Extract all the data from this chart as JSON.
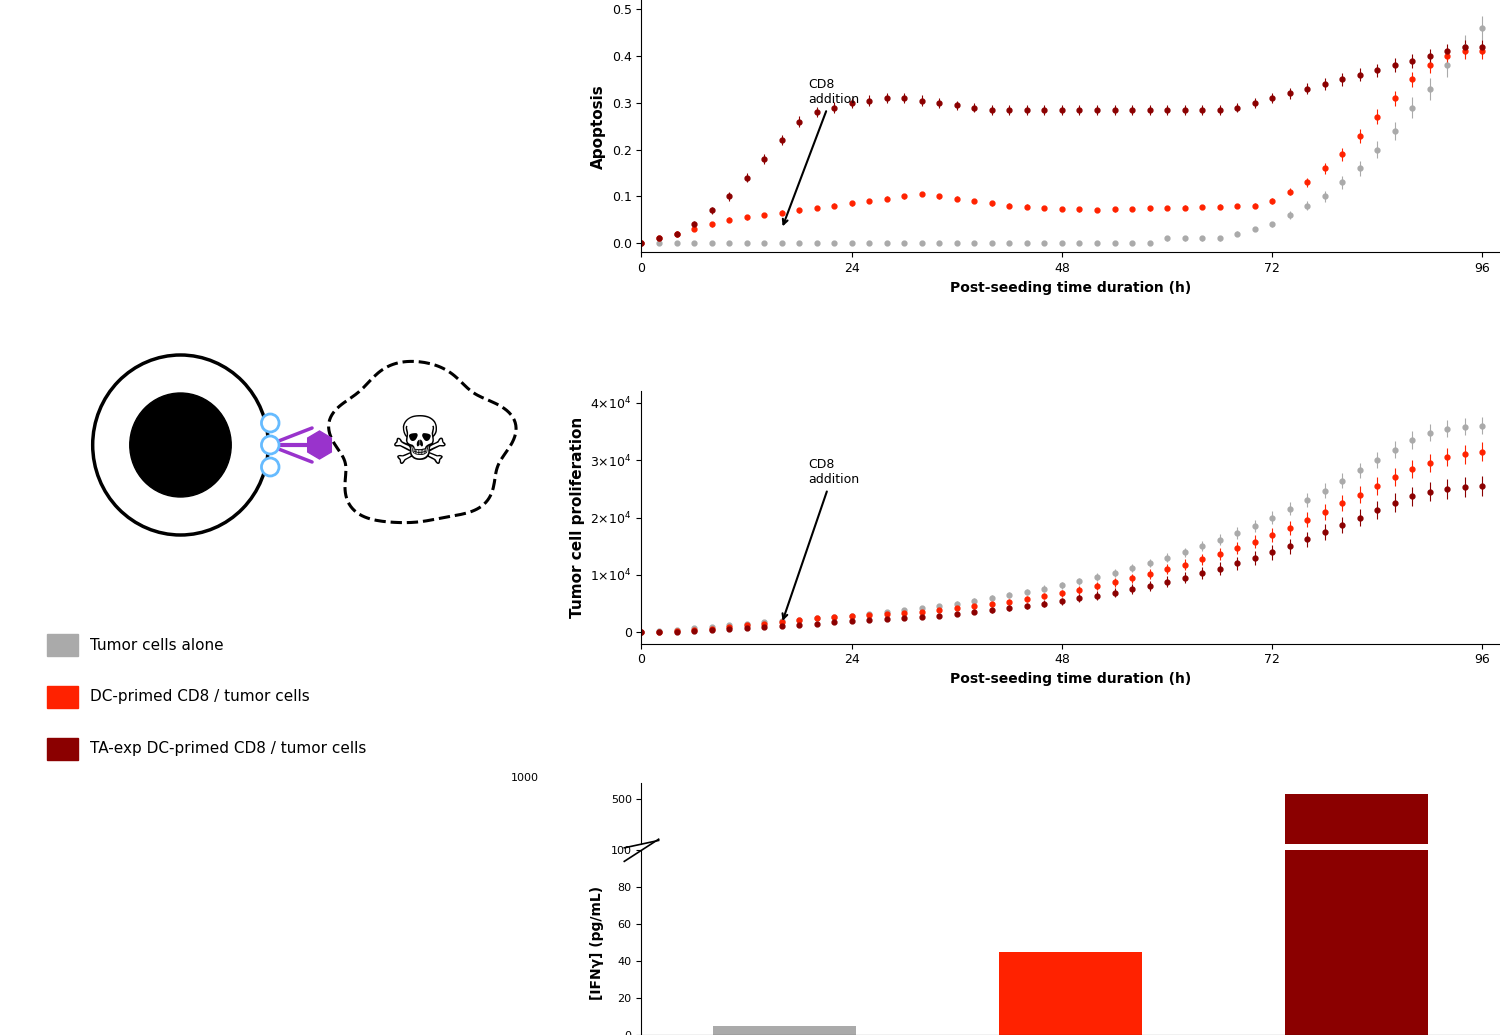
{
  "apoptosis": {
    "time": [
      0,
      2,
      4,
      6,
      8,
      10,
      12,
      14,
      16,
      18,
      20,
      22,
      24,
      26,
      28,
      30,
      32,
      34,
      36,
      38,
      40,
      42,
      44,
      46,
      48,
      50,
      52,
      54,
      56,
      58,
      60,
      62,
      64,
      66,
      68,
      70,
      72,
      74,
      76,
      78,
      80,
      82,
      84,
      86,
      88,
      90,
      92,
      94,
      96
    ],
    "gray": [
      0.0,
      0.0,
      0.0,
      0.0,
      0.0,
      0.0,
      0.0,
      0.0,
      0.0,
      0.0,
      0.0,
      0.0,
      0.0,
      0.0,
      0.0,
      0.0,
      0.0,
      0.0,
      0.0,
      0.0,
      0.0,
      0.0,
      0.0,
      0.0,
      0.0,
      0.0,
      0.0,
      0.0,
      0.0,
      0.0,
      0.01,
      0.01,
      0.01,
      0.01,
      0.02,
      0.03,
      0.04,
      0.06,
      0.08,
      0.1,
      0.13,
      0.16,
      0.2,
      0.24,
      0.29,
      0.33,
      0.38,
      0.42,
      0.46
    ],
    "red": [
      0.0,
      0.01,
      0.02,
      0.03,
      0.04,
      0.05,
      0.055,
      0.06,
      0.065,
      0.07,
      0.075,
      0.08,
      0.085,
      0.09,
      0.095,
      0.1,
      0.105,
      0.1,
      0.095,
      0.09,
      0.085,
      0.08,
      0.078,
      0.075,
      0.073,
      0.072,
      0.071,
      0.072,
      0.073,
      0.074,
      0.075,
      0.076,
      0.077,
      0.078,
      0.079,
      0.08,
      0.09,
      0.11,
      0.13,
      0.16,
      0.19,
      0.23,
      0.27,
      0.31,
      0.35,
      0.38,
      0.4,
      0.41,
      0.41
    ],
    "darkred": [
      0.0,
      0.01,
      0.02,
      0.04,
      0.07,
      0.1,
      0.14,
      0.18,
      0.22,
      0.26,
      0.28,
      0.29,
      0.3,
      0.305,
      0.31,
      0.31,
      0.305,
      0.3,
      0.295,
      0.29,
      0.285,
      0.285,
      0.285,
      0.285,
      0.285,
      0.285,
      0.285,
      0.285,
      0.285,
      0.285,
      0.285,
      0.285,
      0.285,
      0.285,
      0.29,
      0.3,
      0.31,
      0.32,
      0.33,
      0.34,
      0.35,
      0.36,
      0.37,
      0.38,
      0.39,
      0.4,
      0.41,
      0.42,
      0.42
    ],
    "gray_err": [
      0.005,
      0.005,
      0.005,
      0.005,
      0.005,
      0.005,
      0.005,
      0.005,
      0.005,
      0.005,
      0.005,
      0.005,
      0.005,
      0.005,
      0.005,
      0.005,
      0.005,
      0.005,
      0.005,
      0.005,
      0.005,
      0.005,
      0.005,
      0.005,
      0.005,
      0.005,
      0.005,
      0.005,
      0.005,
      0.005,
      0.005,
      0.005,
      0.005,
      0.005,
      0.005,
      0.005,
      0.005,
      0.008,
      0.01,
      0.012,
      0.014,
      0.016,
      0.018,
      0.02,
      0.022,
      0.024,
      0.025,
      0.025,
      0.025
    ],
    "red_err": [
      0.005,
      0.005,
      0.005,
      0.005,
      0.005,
      0.005,
      0.005,
      0.005,
      0.005,
      0.005,
      0.005,
      0.005,
      0.005,
      0.005,
      0.005,
      0.005,
      0.005,
      0.005,
      0.005,
      0.005,
      0.005,
      0.005,
      0.005,
      0.005,
      0.005,
      0.005,
      0.005,
      0.005,
      0.005,
      0.005,
      0.005,
      0.005,
      0.005,
      0.005,
      0.005,
      0.005,
      0.006,
      0.008,
      0.01,
      0.012,
      0.014,
      0.015,
      0.016,
      0.016,
      0.016,
      0.016,
      0.016,
      0.016,
      0.016
    ],
    "darkred_err": [
      0.005,
      0.005,
      0.006,
      0.007,
      0.008,
      0.009,
      0.01,
      0.01,
      0.011,
      0.011,
      0.011,
      0.011,
      0.011,
      0.011,
      0.011,
      0.011,
      0.011,
      0.01,
      0.01,
      0.01,
      0.01,
      0.01,
      0.01,
      0.01,
      0.01,
      0.01,
      0.01,
      0.01,
      0.01,
      0.01,
      0.01,
      0.01,
      0.01,
      0.01,
      0.01,
      0.011,
      0.011,
      0.012,
      0.012,
      0.013,
      0.013,
      0.014,
      0.014,
      0.015,
      0.015,
      0.015,
      0.015,
      0.015,
      0.015
    ]
  },
  "proliferation": {
    "time": [
      0,
      2,
      4,
      6,
      8,
      10,
      12,
      14,
      16,
      18,
      20,
      22,
      24,
      26,
      28,
      30,
      32,
      34,
      36,
      38,
      40,
      42,
      44,
      46,
      48,
      50,
      52,
      54,
      56,
      58,
      60,
      62,
      64,
      66,
      68,
      70,
      72,
      74,
      76,
      78,
      80,
      82,
      84,
      86,
      88,
      90,
      92,
      94,
      96
    ],
    "gray": [
      0,
      200,
      400,
      700,
      1000,
      1300,
      1500,
      1800,
      2000,
      2200,
      2500,
      2700,
      2900,
      3200,
      3500,
      3800,
      4200,
      4600,
      5000,
      5500,
      6000,
      6500,
      7000,
      7600,
      8200,
      8900,
      9600,
      10400,
      11200,
      12100,
      13000,
      13900,
      15000,
      16100,
      17300,
      18600,
      20000,
      21500,
      23000,
      24700,
      26400,
      28200,
      30000,
      31800,
      33500,
      34800,
      35500,
      35800,
      36000
    ],
    "red": [
      0,
      100,
      200,
      400,
      600,
      900,
      1200,
      1500,
      1800,
      2100,
      2400,
      2600,
      2800,
      3000,
      3200,
      3400,
      3600,
      3900,
      4200,
      4500,
      4900,
      5300,
      5800,
      6300,
      6800,
      7400,
      8000,
      8700,
      9400,
      10200,
      11000,
      11800,
      12700,
      13700,
      14700,
      15800,
      17000,
      18200,
      19600,
      21000,
      22500,
      24000,
      25500,
      27000,
      28500,
      29500,
      30500,
      31000,
      31500
    ],
    "darkred": [
      0,
      50,
      100,
      200,
      350,
      500,
      700,
      900,
      1100,
      1300,
      1500,
      1700,
      1900,
      2100,
      2300,
      2500,
      2700,
      2900,
      3200,
      3500,
      3800,
      4200,
      4600,
      5000,
      5400,
      5900,
      6400,
      6900,
      7500,
      8100,
      8800,
      9500,
      10300,
      11100,
      12000,
      12900,
      13900,
      15000,
      16200,
      17400,
      18700,
      20000,
      21300,
      22600,
      23700,
      24500,
      25000,
      25300,
      25500
    ],
    "gray_err": [
      100,
      100,
      150,
      150,
      200,
      200,
      200,
      200,
      250,
      250,
      250,
      300,
      300,
      300,
      350,
      350,
      400,
      400,
      450,
      450,
      500,
      500,
      550,
      550,
      600,
      600,
      650,
      700,
      700,
      750,
      800,
      850,
      900,
      950,
      1000,
      1050,
      1100,
      1150,
      1200,
      1250,
      1300,
      1350,
      1400,
      1450,
      1500,
      1500,
      1500,
      1500,
      1500
    ],
    "red_err": [
      100,
      100,
      100,
      150,
      150,
      150,
      200,
      200,
      200,
      250,
      250,
      250,
      300,
      300,
      300,
      350,
      350,
      400,
      400,
      450,
      450,
      500,
      500,
      550,
      600,
      650,
      700,
      750,
      800,
      850,
      900,
      950,
      1000,
      1050,
      1100,
      1150,
      1200,
      1250,
      1300,
      1350,
      1400,
      1450,
      1500,
      1550,
      1600,
      1600,
      1600,
      1600,
      1600
    ],
    "darkred_err": [
      100,
      100,
      100,
      100,
      150,
      150,
      150,
      200,
      200,
      200,
      250,
      250,
      250,
      300,
      300,
      300,
      350,
      350,
      400,
      400,
      450,
      500,
      550,
      600,
      650,
      700,
      750,
      800,
      850,
      900,
      950,
      1000,
      1050,
      1100,
      1150,
      1200,
      1250,
      1300,
      1350,
      1400,
      1450,
      1500,
      1550,
      1600,
      1650,
      1700,
      1700,
      1700,
      1700
    ]
  },
  "bar": {
    "values": [
      5,
      45,
      550
    ],
    "colors": [
      "#aaaaaa",
      "#ff2200",
      "#8b0000"
    ],
    "ylabel": "[IFNγ] (pg/mL)"
  },
  "colors": {
    "gray": "#aaaaaa",
    "red": "#ff2200",
    "darkred": "#8b0000"
  },
  "legend": {
    "tumor_alone": "Tumor cells alone",
    "dc_primed": "DC-primed CD8 / tumor cells",
    "ta_exp": "TA-exp DC-primed CD8 / tumor cells"
  }
}
